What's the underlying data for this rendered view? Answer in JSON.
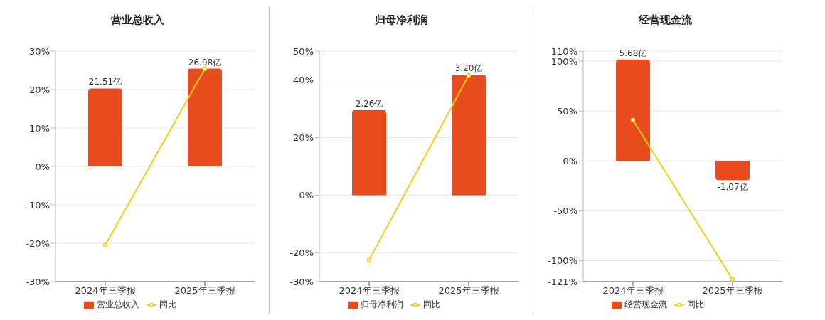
{
  "chart_data": [
    {
      "type": "bar",
      "title": "营业总收入",
      "categories": [
        "2024年三季报",
        "2025年三季报"
      ],
      "ylim": [
        -30,
        30
      ],
      "yticks": [
        {
          "value": -30,
          "label": "-30%"
        },
        {
          "value": -20,
          "label": "-20%"
        },
        {
          "value": -10,
          "label": "-10%"
        },
        {
          "value": 0,
          "label": "0%"
        },
        {
          "value": 10,
          "label": "10%"
        },
        {
          "value": 20,
          "label": "20%"
        },
        {
          "value": 30,
          "label": "30%"
        }
      ],
      "y2lim": [
        -31.8,
        31.8
      ],
      "grid": "y",
      "legend": "bottom",
      "marker": "circle",
      "series": [
        {
          "name": "营业总收入",
          "axis": "y2",
          "color": "#e84c1e",
          "values": [
            21.51,
            26.98
          ],
          "value_labels": [
            "21.51亿",
            "26.98亿"
          ]
        },
        {
          "name": "同比",
          "type": "line",
          "color": "#f2cd16",
          "values": [
            -20.5,
            25.4
          ]
        }
      ]
    },
    {
      "type": "bar",
      "title": "归母净利润",
      "categories": [
        "2024年三季报",
        "2025年三季报"
      ],
      "ylim": [
        -30,
        50
      ],
      "yticks": [
        {
          "value": -30,
          "label": "-30%"
        },
        {
          "value": -20,
          "label": "-20%"
        },
        {
          "value": 0,
          "label": "0%"
        },
        {
          "value": 20,
          "label": "20%"
        },
        {
          "value": 40,
          "label": "40%"
        },
        {
          "value": 50,
          "label": "50%"
        }
      ],
      "y2lim": [
        -2.29,
        3.82
      ],
      "grid": "y",
      "legend": "bottom",
      "marker": "circle",
      "series": [
        {
          "name": "归母净利润",
          "axis": "y2",
          "color": "#e84c1e",
          "values": [
            2.26,
            3.2
          ],
          "value_labels": [
            "2.26亿",
            "3.20亿"
          ]
        },
        {
          "name": "同比",
          "type": "line",
          "color": "#f2cd16",
          "values": [
            -22.5,
            41.6
          ]
        }
      ]
    },
    {
      "type": "bar",
      "title": "经营现金流",
      "categories": [
        "2024年三季报",
        "2025年三季报"
      ],
      "ylim": [
        -121,
        110
      ],
      "yticks": [
        {
          "value": -121,
          "label": "-121%"
        },
        {
          "value": -100,
          "label": "-100%"
        },
        {
          "value": -50,
          "label": "-50%"
        },
        {
          "value": 0,
          "label": "0%"
        },
        {
          "value": 50,
          "label": "50%"
        },
        {
          "value": 100,
          "label": "100%"
        },
        {
          "value": 110,
          "label": "110%"
        }
      ],
      "y2lim": [
        -6.76,
        6.15
      ],
      "grid": "y",
      "legend": "bottom",
      "marker": "circle",
      "series": [
        {
          "name": "经营现金流",
          "axis": "y2",
          "color": "#e84c1e",
          "values": [
            5.68,
            -1.07
          ],
          "value_labels": [
            "5.68亿",
            "-1.07亿"
          ]
        },
        {
          "name": "同比",
          "type": "line",
          "color": "#f2cd16",
          "values": [
            41,
            -118.8
          ]
        }
      ]
    }
  ]
}
